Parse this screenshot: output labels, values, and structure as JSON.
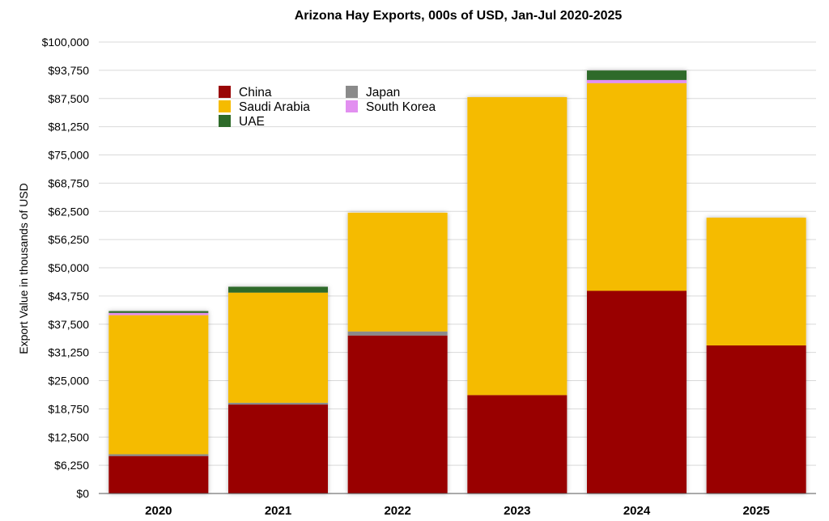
{
  "chart_data": {
    "type": "bar",
    "stacked": true,
    "title": "Arizona Hay Exports, 000s of USD, Jan-Jul 2020-2025",
    "xlabel": "",
    "ylabel": "Export Value in thousands of USD",
    "ylim": [
      0,
      100000
    ],
    "y_ticks": [
      "$0",
      "$6,250",
      "$12,500",
      "$18,750",
      "$25,000",
      "$31,250",
      "$37,500",
      "$43,750",
      "$50,000",
      "$56,250",
      "$62,500",
      "$68,750",
      "$75,000",
      "$81,250",
      "$87,500",
      "$93,750",
      "$100,000"
    ],
    "y_tick_values": [
      0,
      6250,
      12500,
      18750,
      25000,
      31250,
      37500,
      43750,
      50000,
      56250,
      62500,
      68750,
      75000,
      81250,
      87500,
      93750,
      100000
    ],
    "grid": true,
    "legend_position": "top-left",
    "categories": [
      "2020",
      "2021",
      "2022",
      "2023",
      "2024",
      "2025"
    ],
    "series": [
      {
        "name": "China",
        "color": "#990606",
        "values": [
          8300,
          19700,
          35000,
          21800,
          44900,
          32800
        ]
      },
      {
        "name": "Japan",
        "color": "#8a8a8a",
        "values": [
          400,
          400,
          900,
          0,
          0,
          0
        ]
      },
      {
        "name": "Saudi Arabia",
        "color": "#f5bb00",
        "values": [
          30800,
          24400,
          26300,
          66000,
          46000,
          28300
        ]
      },
      {
        "name": "South Korea",
        "color": "#e28ff0",
        "values": [
          500,
          0,
          0,
          0,
          700,
          0
        ]
      },
      {
        "name": "UAE",
        "color": "#2e6b2a",
        "values": [
          400,
          1300,
          0,
          0,
          2100,
          0
        ]
      }
    ]
  }
}
